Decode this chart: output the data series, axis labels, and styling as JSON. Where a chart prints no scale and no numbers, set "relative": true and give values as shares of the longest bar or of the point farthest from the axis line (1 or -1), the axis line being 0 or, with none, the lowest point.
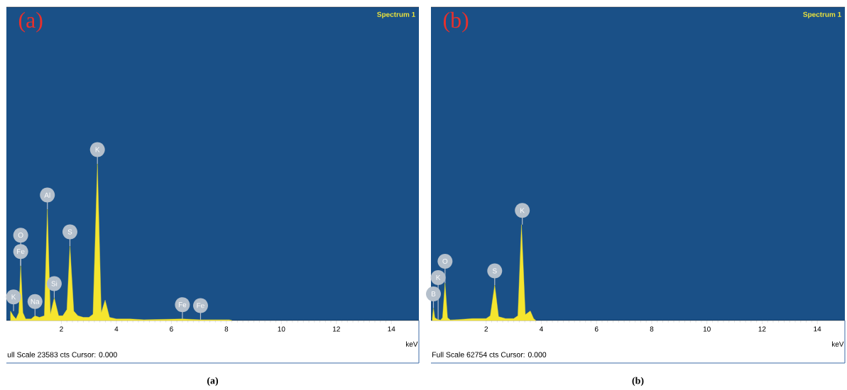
{
  "chart_data": [
    {
      "type": "area",
      "title": "(a)",
      "xlabel": "keV",
      "relative": true,
      "color": "#f5e52e",
      "xlim": [
        0,
        15
      ],
      "xticks": [
        2,
        4,
        6,
        8,
        10,
        12,
        14
      ],
      "x": [
        0.15,
        0.25,
        0.35,
        0.45,
        0.52,
        0.6,
        0.7,
        0.9,
        1.04,
        1.2,
        1.38,
        1.49,
        1.6,
        1.74,
        1.9,
        2.05,
        2.2,
        2.31,
        2.45,
        2.6,
        2.8,
        3.0,
        3.15,
        3.31,
        3.45,
        3.59,
        3.75,
        4.0,
        4.5,
        5.0,
        6.4,
        7.05,
        8.1,
        8.2
      ],
      "values": [
        0.06,
        0.03,
        0.01,
        0.05,
        0.35,
        0.05,
        0.01,
        0.01,
        0.03,
        0.02,
        0.03,
        0.71,
        0.04,
        0.145,
        0.03,
        0.03,
        0.07,
        0.475,
        0.06,
        0.03,
        0.02,
        0.02,
        0.04,
        1.0,
        0.05,
        0.13,
        0.02,
        0.01,
        0.01,
        0.005,
        0.01,
        0.005,
        0.005,
        0
      ],
      "annotations": [
        "(a)",
        "Spectrum 1",
        "ull Scale 23583 cts Cursor: 0.000",
        {
          "text": "K",
          "x": 0.26,
          "y": 0.06
        },
        {
          "text": "Fe",
          "x": 0.52,
          "y": 0.35
        },
        {
          "text": "O",
          "x": 0.52,
          "y": 0.35
        },
        {
          "text": "Na",
          "x": 1.04,
          "y": 0.03
        },
        {
          "text": "Al",
          "x": 1.49,
          "y": 0.71
        },
        {
          "text": "Si",
          "x": 1.74,
          "y": 0.145
        },
        {
          "text": "S",
          "x": 2.31,
          "y": 0.475
        },
        {
          "text": "K",
          "x": 3.31,
          "y": 1.0
        },
        {
          "text": "Fe",
          "x": 6.4,
          "y": 0.01
        },
        {
          "text": "Fe",
          "x": 7.06,
          "y": 0.005
        }
      ]
    },
    {
      "type": "area",
      "title": "(b)",
      "xlabel": "keV",
      "relative": true,
      "color": "#f5e52e",
      "xlim": [
        0,
        15
      ],
      "xticks": [
        2,
        4,
        6,
        8,
        10,
        12,
        14
      ],
      "x": [
        0.05,
        0.09,
        0.14,
        0.25,
        0.35,
        0.42,
        0.51,
        0.6,
        0.7,
        1.0,
        1.5,
        2.0,
        2.15,
        2.31,
        2.45,
        2.7,
        3.0,
        3.15,
        3.28,
        3.42,
        3.6,
        3.72,
        3.8
      ],
      "values": [
        0.02,
        0.13,
        0.03,
        0.01,
        0.005,
        0.03,
        0.39,
        0.03,
        0.005,
        0.01,
        0.02,
        0.02,
        0.05,
        0.37,
        0.04,
        0.02,
        0.02,
        0.05,
        1.0,
        0.06,
        0.1,
        0.02,
        0
      ],
      "annotations": [
        "(b)",
        "Spectrum 1",
        "Full Scale 62754 cts Cursor: 0.000",
        {
          "text": "B",
          "x": 0.09,
          "y": 0.13
        },
        {
          "text": "K",
          "x": 0.26,
          "y": 0.01
        },
        {
          "text": "O",
          "x": 0.51,
          "y": 0.39
        },
        {
          "text": "S",
          "x": 2.31,
          "y": 0.37
        },
        {
          "text": "K",
          "x": 3.31,
          "y": 1.0
        }
      ]
    }
  ]
}
